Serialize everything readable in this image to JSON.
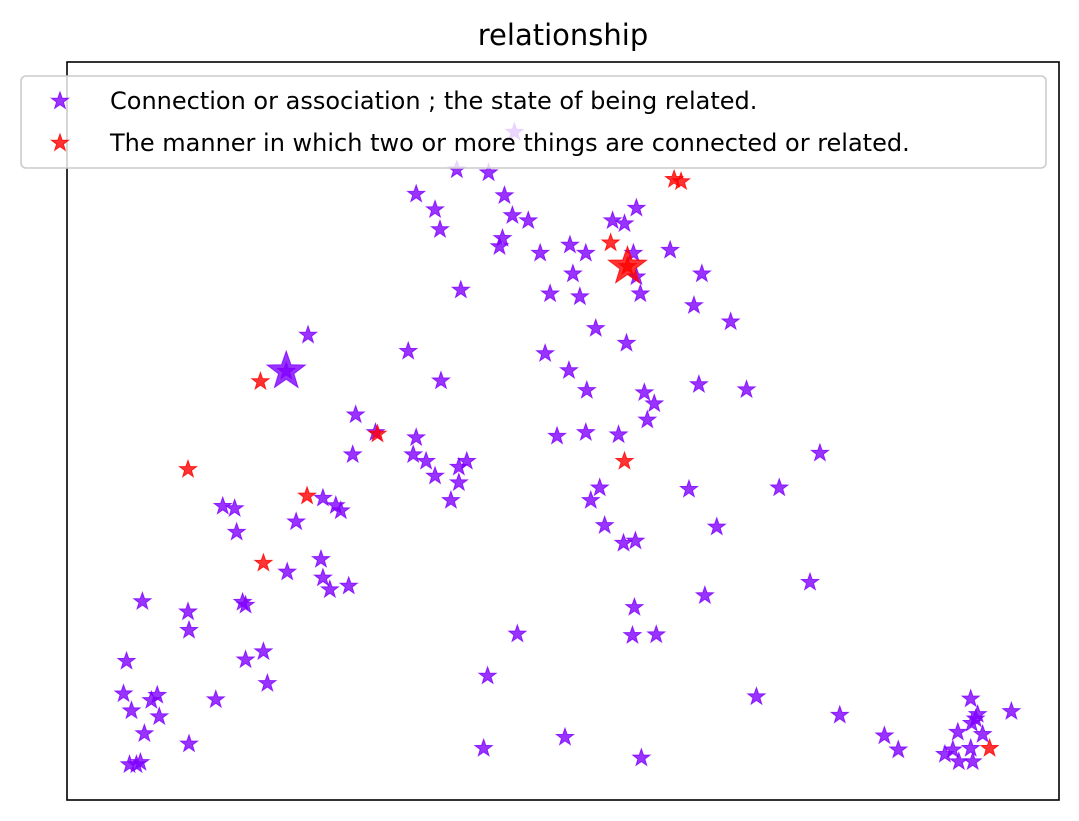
{
  "chart_data": {
    "type": "scatter",
    "title": "relationship",
    "xlabel": "",
    "ylabel": "",
    "xlim": [
      0,
      100
    ],
    "ylim": [
      0,
      100
    ],
    "x_ticks": "none",
    "y_ticks": "none",
    "grid": false,
    "legend_position": "top",
    "marker": "star",
    "series": [
      {
        "name": "Connection or association ; the state of being related.",
        "color": "#7f00ff",
        "points": [
          [
            22.1,
            58.1
          ],
          [
            24.3,
            63.0
          ],
          [
            37.7,
            56.8
          ],
          [
            39.7,
            69.1
          ],
          [
            39.3,
            85.4
          ],
          [
            37.1,
            80.0
          ],
          [
            35.2,
            82.1
          ],
          [
            37.6,
            77.3
          ],
          [
            42.5,
            85.0
          ],
          [
            45.1,
            90.5
          ],
          [
            44.9,
            79.2
          ],
          [
            43.6,
            75.0
          ],
          [
            44.1,
            81.9
          ],
          [
            46.5,
            78.5
          ],
          [
            43.9,
            76.1
          ],
          [
            47.7,
            74.1
          ],
          [
            48.7,
            68.6
          ],
          [
            51.0,
            71.3
          ],
          [
            51.7,
            68.2
          ],
          [
            52.3,
            74.1
          ],
          [
            50.7,
            75.2
          ],
          [
            57.1,
            74.1
          ],
          [
            57.4,
            80.2
          ],
          [
            56.2,
            78.1
          ],
          [
            55.0,
            78.5
          ],
          [
            53.3,
            63.9
          ],
          [
            56.4,
            61.9
          ],
          [
            59.2,
            53.7
          ],
          [
            57.4,
            70.9
          ],
          [
            63.2,
            67.0
          ],
          [
            66.9,
            64.8
          ],
          [
            68.5,
            55.6
          ],
          [
            55.6,
            49.5
          ],
          [
            52.3,
            49.8
          ],
          [
            49.4,
            49.3
          ],
          [
            48.2,
            60.5
          ],
          [
            50.6,
            58.2
          ],
          [
            52.4,
            55.5
          ],
          [
            39.5,
            43.0
          ],
          [
            38.7,
            40.6
          ],
          [
            37.1,
            43.9
          ],
          [
            35.2,
            49.1
          ],
          [
            31.1,
            49.8
          ],
          [
            29.1,
            52.2
          ],
          [
            36.2,
            45.9
          ],
          [
            34.9,
            46.8
          ],
          [
            40.3,
            45.9
          ],
          [
            39.5,
            45.1
          ],
          [
            28.8,
            46.8
          ],
          [
            34.4,
            60.8
          ],
          [
            27.1,
            39.9
          ],
          [
            27.6,
            39.2
          ],
          [
            25.8,
            40.9
          ],
          [
            23.1,
            37.7
          ],
          [
            17.1,
            36.3
          ],
          [
            15.7,
            39.8
          ],
          [
            16.9,
            39.5
          ],
          [
            22.2,
            30.9
          ],
          [
            26.5,
            28.5
          ],
          [
            25.6,
            32.6
          ],
          [
            28.4,
            29.0
          ],
          [
            25.8,
            30.1
          ],
          [
            18.0,
            26.4
          ],
          [
            17.7,
            26.8
          ],
          [
            12.2,
            25.5
          ],
          [
            19.8,
            20.1
          ],
          [
            18.0,
            19.0
          ],
          [
            20.2,
            15.8
          ],
          [
            7.6,
            26.9
          ],
          [
            12.3,
            23.0
          ],
          [
            15.0,
            13.6
          ],
          [
            6.0,
            18.8
          ],
          [
            5.7,
            14.4
          ],
          [
            9.1,
            14.2
          ],
          [
            9.3,
            11.3
          ],
          [
            8.5,
            13.5
          ],
          [
            6.5,
            12.1
          ],
          [
            7.8,
            9.0
          ],
          [
            6.3,
            4.8
          ],
          [
            7.4,
            5.1
          ],
          [
            7.0,
            4.8
          ],
          [
            12.3,
            7.6
          ],
          [
            42.4,
            16.8
          ],
          [
            45.4,
            22.5
          ],
          [
            42.0,
            7.0
          ],
          [
            50.2,
            8.5
          ],
          [
            57.9,
            5.7
          ],
          [
            57.2,
            26.1
          ],
          [
            57.0,
            22.3
          ],
          [
            59.4,
            22.4
          ],
          [
            64.3,
            27.7
          ],
          [
            69.5,
            14.0
          ],
          [
            74.9,
            29.5
          ],
          [
            77.9,
            11.5
          ],
          [
            82.4,
            8.7
          ],
          [
            83.8,
            6.8
          ],
          [
            89.3,
            6.8
          ],
          [
            89.8,
            9.2
          ],
          [
            91.6,
            11.0
          ],
          [
            91.2,
            10.4
          ],
          [
            91.8,
            11.6
          ],
          [
            92.3,
            8.9
          ],
          [
            91.1,
            13.7
          ],
          [
            95.2,
            12.0
          ],
          [
            88.5,
            6.2
          ],
          [
            89.9,
            5.2
          ],
          [
            91.3,
            5.2
          ],
          [
            91.1,
            7.0
          ],
          [
            62.7,
            42.1
          ],
          [
            57.3,
            35.1
          ],
          [
            58.5,
            51.5
          ],
          [
            63.7,
            56.3
          ],
          [
            53.7,
            42.3
          ],
          [
            56.1,
            34.8
          ],
          [
            54.2,
            37.2
          ],
          [
            65.5,
            37.0
          ],
          [
            75.9,
            47.0
          ],
          [
            71.8,
            42.3
          ],
          [
            58.2,
            55.2
          ],
          [
            52.8,
            40.6
          ],
          [
            57.8,
            68.6
          ],
          [
            60.8,
            74.5
          ],
          [
            64.0,
            71.3
          ]
        ]
      },
      {
        "name": "The manner in which two or more things are connected or related.",
        "color": "#ff0000",
        "points": [
          [
            56.5,
            72.3
          ],
          [
            54.8,
            75.5
          ],
          [
            61.2,
            84.1
          ],
          [
            61.9,
            83.8
          ],
          [
            19.5,
            56.7
          ],
          [
            31.3,
            49.6
          ],
          [
            12.2,
            44.8
          ],
          [
            24.2,
            41.2
          ],
          [
            19.8,
            32.1
          ],
          [
            56.2,
            45.9
          ],
          [
            93.0,
            7.0
          ]
        ]
      }
    ],
    "highlight_markers": [
      {
        "series": 0,
        "x": 22.1,
        "y": 58.1
      },
      {
        "series": 1,
        "x": 56.5,
        "y": 72.3
      }
    ]
  }
}
